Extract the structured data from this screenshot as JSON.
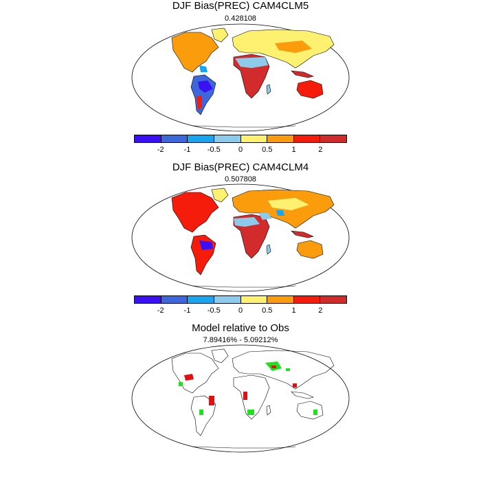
{
  "panels": [
    {
      "title": "DJF Bias(PREC) CAM4CLM5",
      "subtitle": "0.428108"
    },
    {
      "title": "DJF Bias(PREC) CAM4CLM4",
      "subtitle": "0.507808"
    },
    {
      "title": "Model relative to Obs",
      "subtitle": "7.89416% - 5.09212%"
    }
  ],
  "colorbar": {
    "colors": [
      "#3b10f5",
      "#3f67dc",
      "#17a5f0",
      "#8ccbec",
      "#fff170",
      "#fb9c0d",
      "#f61c0b",
      "#d12b2b"
    ],
    "labels": [
      "-2",
      "-1",
      "-0.5",
      "0",
      "0.5",
      "1",
      "2"
    ]
  },
  "map_colors": {
    "land_outline": "#000000",
    "ocean": "#ffffff",
    "better": "#20e020",
    "worse": "#e01010"
  }
}
